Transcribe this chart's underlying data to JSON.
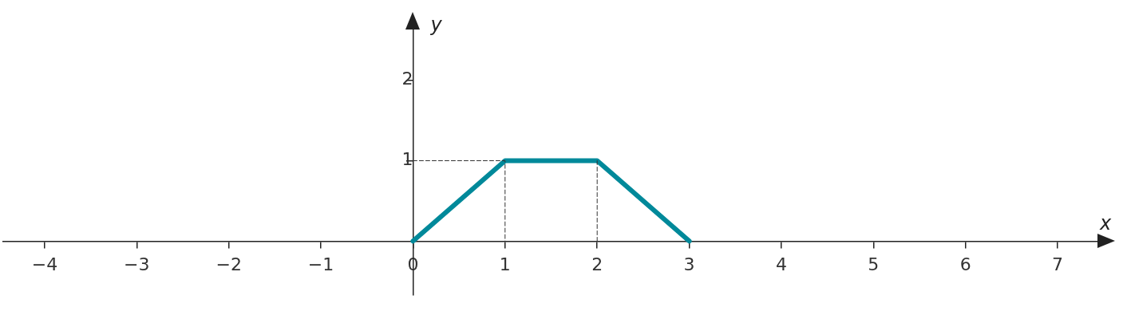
{
  "chart_data": {
    "type": "line",
    "xlabel": "x",
    "ylabel": "y",
    "xlim": [
      -4.45,
      7.45
    ],
    "ylim": [
      -0.67,
      2.65
    ],
    "xticks": [
      {
        "value": -4,
        "label": "−4"
      },
      {
        "value": -3,
        "label": "−3"
      },
      {
        "value": -2,
        "label": "−2"
      },
      {
        "value": -1,
        "label": "−1"
      },
      0,
      1,
      2,
      3,
      4,
      5,
      6,
      7
    ],
    "yticks": [
      1,
      2
    ],
    "marker": "none",
    "legend": false,
    "series": [
      {
        "type": "line",
        "color": "#00899a",
        "x": [
          0,
          1,
          2,
          3
        ],
        "values": [
          0,
          1,
          1,
          0
        ],
        "line_style": "solid"
      },
      {
        "type": "line",
        "color": "#333333",
        "x": [
          0,
          1,
          1
        ],
        "values": [
          1,
          1,
          0
        ],
        "line_style": "dashed"
      },
      {
        "type": "line",
        "color": "#333333",
        "x": [
          2,
          2
        ],
        "values": [
          1,
          0
        ],
        "line_style": "dashed"
      }
    ]
  }
}
